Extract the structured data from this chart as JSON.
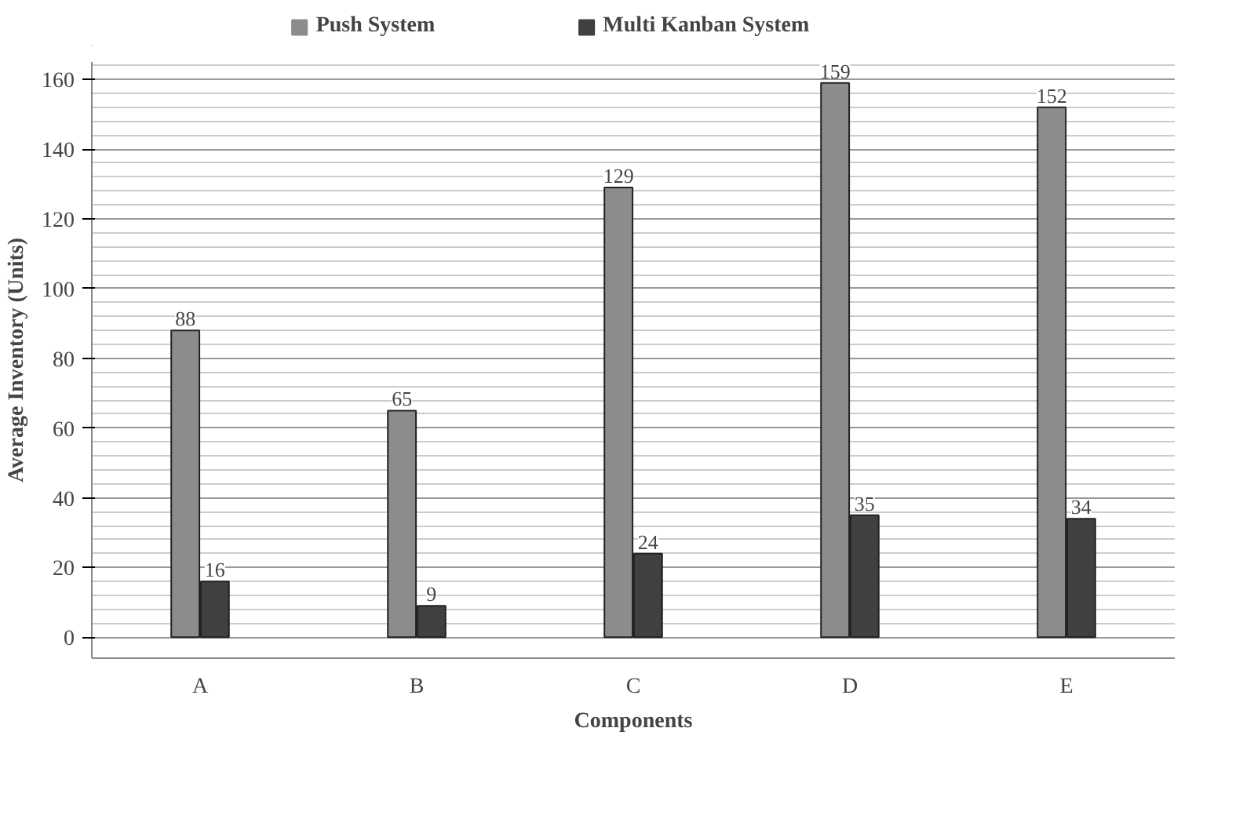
{
  "chart_data": {
    "type": "bar",
    "xlabel": "Components",
    "ylabel": "Average Inventory (Units)",
    "categories": [
      "A",
      "B",
      "C",
      "D",
      "E"
    ],
    "series": [
      {
        "name": "Push System",
        "color": "#8c8c8c",
        "values": [
          88,
          65,
          129,
          159,
          152
        ]
      },
      {
        "name": "Multi Kanban System",
        "color": "#404040",
        "values": [
          16,
          9,
          24,
          35,
          34
        ]
      }
    ],
    "ylim": [
      -6,
      165
    ],
    "yticks": [
      0,
      20,
      40,
      60,
      80,
      100,
      120,
      140,
      160
    ],
    "grid": "y",
    "legend": "top",
    "data_labels": true
  }
}
